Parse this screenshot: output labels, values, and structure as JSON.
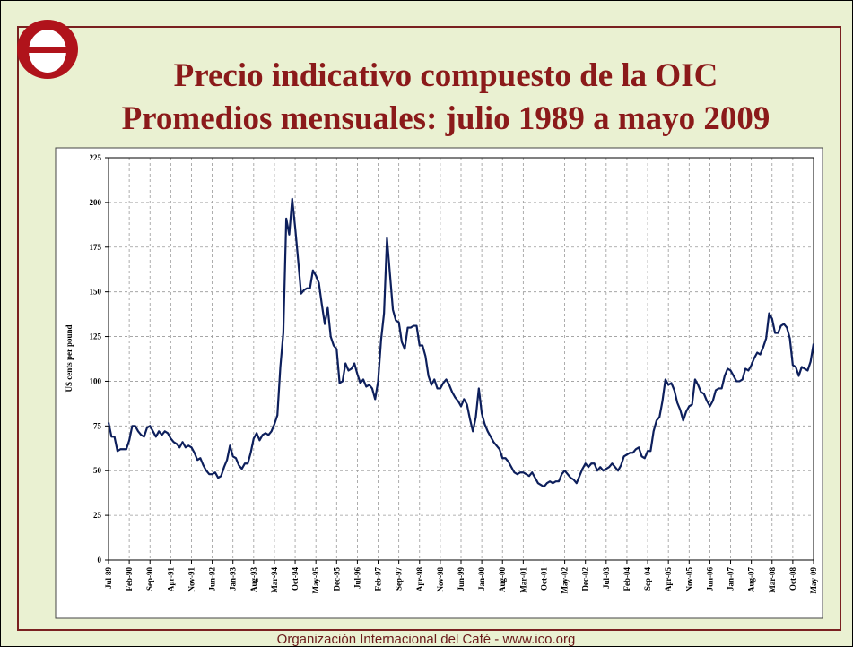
{
  "title": [
    "Precio indicativo compuesto de la OIC",
    "Promedios mensuales:  julio 1989 a mayo 2009"
  ],
  "footer": "Organización Internacional del Café  -  www.ico.org",
  "chart_data": {
    "type": "line",
    "y_label": "US cents per pound",
    "color": "#0d1f5c",
    "grid": true,
    "ylim": [
      0,
      225
    ],
    "yticks": [
      0,
      25,
      50,
      75,
      100,
      125,
      150,
      175,
      200,
      225
    ],
    "categories": [
      "Jul-89",
      null,
      null,
      null,
      null,
      null,
      null,
      "Feb-90",
      null,
      null,
      null,
      null,
      null,
      null,
      "Sep-90",
      null,
      null,
      null,
      null,
      null,
      null,
      "Apr-91",
      null,
      null,
      null,
      null,
      null,
      null,
      "Nov-91",
      null,
      null,
      null,
      null,
      null,
      null,
      "Jun-92",
      null,
      null,
      null,
      null,
      null,
      null,
      "Jan-93",
      null,
      null,
      null,
      null,
      null,
      null,
      "Aug-93",
      null,
      null,
      null,
      null,
      null,
      null,
      "Mar-94",
      null,
      null,
      null,
      null,
      null,
      null,
      "Oct-94",
      null,
      null,
      null,
      null,
      null,
      null,
      "May-95",
      null,
      null,
      null,
      null,
      null,
      null,
      "Dec-95",
      null,
      null,
      null,
      null,
      null,
      null,
      "Jul-96",
      null,
      null,
      null,
      null,
      null,
      null,
      "Feb-97",
      null,
      null,
      null,
      null,
      null,
      null,
      "Sep-97",
      null,
      null,
      null,
      null,
      null,
      null,
      "Apr-98",
      null,
      null,
      null,
      null,
      null,
      null,
      "Nov-98",
      null,
      null,
      null,
      null,
      null,
      null,
      "Jun-99",
      null,
      null,
      null,
      null,
      null,
      null,
      "Jan-00",
      null,
      null,
      null,
      null,
      null,
      null,
      "Aug-00",
      null,
      null,
      null,
      null,
      null,
      null,
      "Mar-01",
      null,
      null,
      null,
      null,
      null,
      null,
      "Oct-01",
      null,
      null,
      null,
      null,
      null,
      null,
      "May-02",
      null,
      null,
      null,
      null,
      null,
      null,
      "Dec-02",
      null,
      null,
      null,
      null,
      null,
      null,
      "Jul-03",
      null,
      null,
      null,
      null,
      null,
      null,
      "Feb-04",
      null,
      null,
      null,
      null,
      null,
      null,
      "Sep-04",
      null,
      null,
      null,
      null,
      null,
      null,
      "Apr-05",
      null,
      null,
      null,
      null,
      null,
      null,
      "Nov-05",
      null,
      null,
      null,
      null,
      null,
      null,
      "Jun-06",
      null,
      null,
      null,
      null,
      null,
      null,
      "Jan-07",
      null,
      null,
      null,
      null,
      null,
      null,
      "Aug-07",
      null,
      null,
      null,
      null,
      null,
      null,
      "Mar-08",
      null,
      null,
      null,
      null,
      null,
      null,
      "Oct-08",
      null,
      null,
      null,
      null,
      null,
      null,
      "May-09"
    ],
    "values": [
      77,
      69,
      69,
      61,
      62,
      62,
      62,
      67,
      75,
      75,
      72,
      70,
      69,
      74,
      75,
      72,
      69,
      72,
      70,
      72,
      71,
      68,
      66,
      65,
      63,
      66,
      63,
      64,
      63,
      60,
      56,
      57,
      53,
      50,
      48,
      48,
      49,
      46,
      47,
      52,
      56,
      64,
      58,
      57,
      53,
      51,
      54,
      54,
      60,
      68,
      71,
      67,
      70,
      71,
      70,
      72,
      76,
      81,
      108,
      127,
      191,
      182,
      202,
      186,
      168,
      149,
      151,
      152,
      152,
      162,
      159,
      155,
      143,
      132,
      141,
      125,
      120,
      118,
      99,
      100,
      110,
      106,
      107,
      110,
      104,
      99,
      101,
      97,
      98,
      96,
      90,
      100,
      123,
      138,
      180,
      160,
      140,
      134,
      133,
      122,
      118,
      130,
      130,
      131,
      131,
      120,
      120,
      114,
      103,
      98,
      101,
      96,
      96,
      99,
      101,
      98,
      94,
      91,
      89,
      86,
      90,
      87,
      79,
      72,
      80,
      96,
      82,
      76,
      72,
      69,
      66,
      64,
      62,
      57,
      57,
      55,
      52,
      49,
      48,
      49,
      49,
      48,
      47,
      49,
      46,
      43,
      42,
      41,
      43,
      44,
      43,
      44,
      44,
      48,
      50,
      48,
      46,
      45,
      43,
      47,
      51,
      54,
      52,
      54,
      54,
      50,
      52,
      50,
      51,
      52,
      54,
      52,
      50,
      53,
      58,
      59,
      60,
      60,
      62,
      63,
      58,
      57,
      61,
      61,
      72,
      78,
      80,
      89,
      101,
      98,
      99,
      95,
      88,
      84,
      78,
      83,
      86,
      87,
      101,
      98,
      94,
      93,
      89,
      86,
      89,
      95,
      96,
      96,
      103,
      107,
      106,
      103,
      100,
      100,
      101,
      107,
      106,
      109,
      113,
      116,
      115,
      119,
      124,
      138,
      135,
      127,
      127,
      131,
      132,
      130,
      124,
      109,
      108,
      103,
      108,
      107,
      106,
      111,
      121
    ]
  }
}
